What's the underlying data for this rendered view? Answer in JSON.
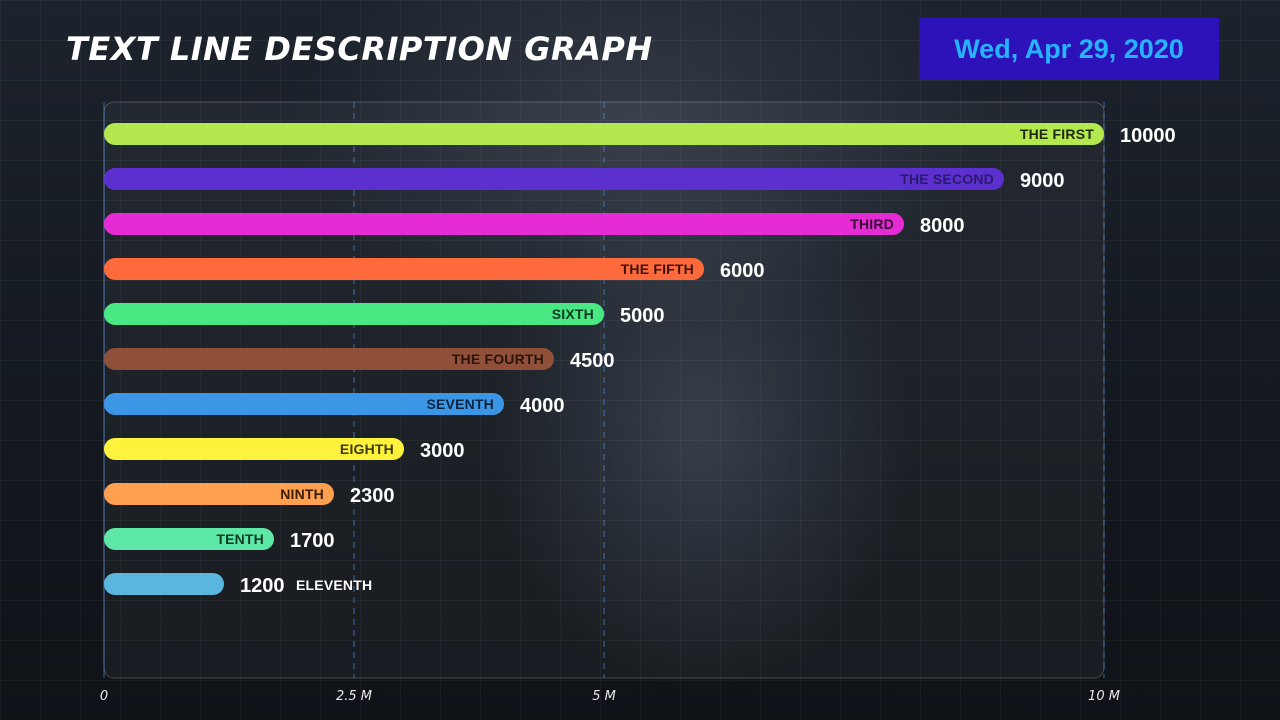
{
  "chart_data": {
    "type": "bar",
    "orientation": "horizontal",
    "title": "TEXT LINE DESCRIPTION GRAPH",
    "date": "Wed, Apr 29, 2020",
    "categories": [
      "THE FIRST",
      "THE SECOND",
      "THIRD",
      "THE FIFTH",
      "SIXTH",
      "THE FOURTH",
      "SEVENTH",
      "EIGHTH",
      "NINTH",
      "TENTH",
      "ELEVENTH"
    ],
    "values": [
      10000,
      9000,
      8000,
      6000,
      5000,
      4500,
      4000,
      3000,
      2300,
      1700,
      1200
    ],
    "value_labels": [
      "10000",
      "9000",
      "8000",
      "6000",
      "5000",
      "4500",
      "4000",
      "3000",
      "2300",
      "1700",
      "1200"
    ],
    "colors": [
      "#b3e84e",
      "#5b30cf",
      "#e42bd4",
      "#ff6a3d",
      "#4ae882",
      "#8f4f38",
      "#3b97e6",
      "#fff23c",
      "#ff9f50",
      "#5ee8a8",
      "#5ab6dc"
    ],
    "label_colors": [
      "#1e2a10",
      "#2a1a6a",
      "#3a0a36",
      "#3a1408",
      "#0f3a20",
      "#2a140c",
      "#0c2440",
      "#3a3a08",
      "#3a1e08",
      "#0c3a24",
      "#ffffff"
    ],
    "xlim": [
      0,
      10000
    ],
    "xticks": [
      0,
      2500,
      5000,
      10000
    ],
    "xtick_labels": [
      "0",
      "2.5 M",
      "5 M",
      "10 M"
    ],
    "grid": true,
    "legend": "none"
  }
}
